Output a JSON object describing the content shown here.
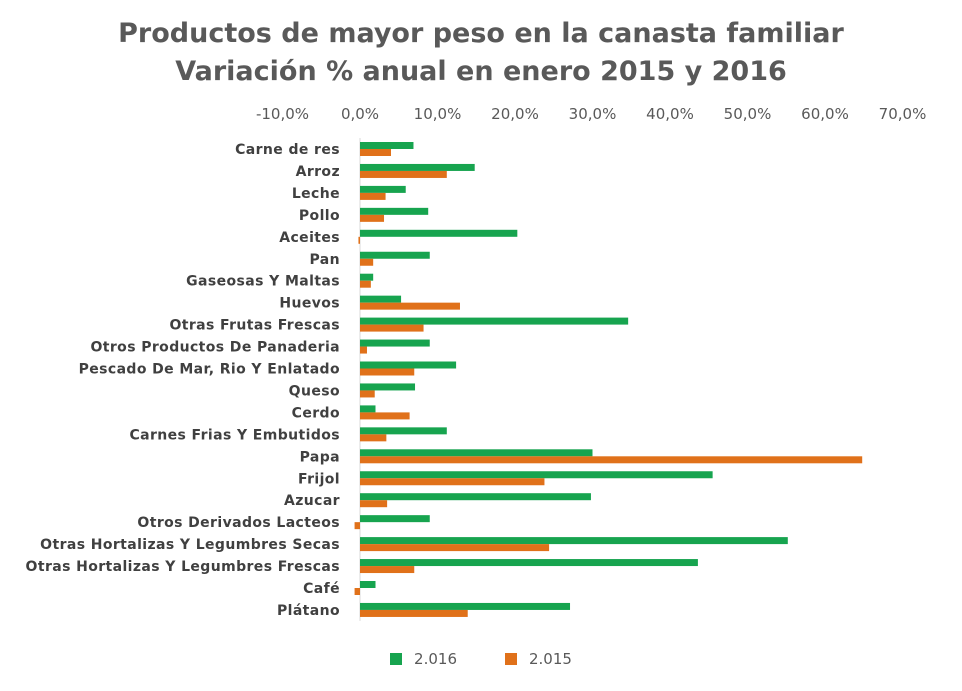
{
  "chart_data": {
    "type": "bar",
    "orientation": "horizontal",
    "title": "Productos de mayor peso en la canasta familiar",
    "subtitle": "Variación % anual en enero 2015 y 2016",
    "x_ticks": [
      "-10,0%",
      "0,0%",
      "10,0%",
      "20,0%",
      "30,0%",
      "40,0%",
      "50,0%",
      "60,0%",
      "70,0%"
    ],
    "xlim": [
      -10,
      70
    ],
    "grid": false,
    "legend_position": "bottom",
    "categories": [
      "Carne de res",
      "Arroz",
      "Leche",
      "Pollo",
      "Aceites",
      "Pan",
      "Gaseosas Y Maltas",
      "Huevos",
      "Otras Frutas Frescas",
      "Otros Productos De Panaderia",
      "Pescado De Mar, Rio Y Enlatado",
      "Queso",
      "Cerdo",
      "Carnes Frias Y Embutidos",
      "Papa",
      "Frijol",
      "Azucar",
      "Otros Derivados Lacteos",
      "Otras Hortalizas Y Legumbres Secas",
      "Otras Hortalizas Y Legumbres Frescas",
      "Café",
      "Plátano"
    ],
    "series": [
      {
        "name": "2.016",
        "color": "#17a44f",
        "values": [
          6.9,
          14.8,
          5.9,
          8.8,
          20.3,
          9.0,
          1.7,
          5.3,
          34.6,
          9.0,
          12.4,
          7.1,
          2.0,
          11.2,
          30.0,
          45.5,
          29.8,
          9.0,
          55.2,
          43.6,
          2.0,
          27.1
        ]
      },
      {
        "name": "2.015",
        "color": "#e0711a",
        "values": [
          4.0,
          11.2,
          3.3,
          3.1,
          -0.2,
          1.7,
          1.4,
          12.9,
          8.2,
          0.9,
          7.0,
          1.9,
          6.4,
          3.4,
          64.8,
          23.8,
          3.5,
          -0.7,
          24.4,
          7.0,
          -0.7,
          13.9
        ]
      }
    ]
  }
}
